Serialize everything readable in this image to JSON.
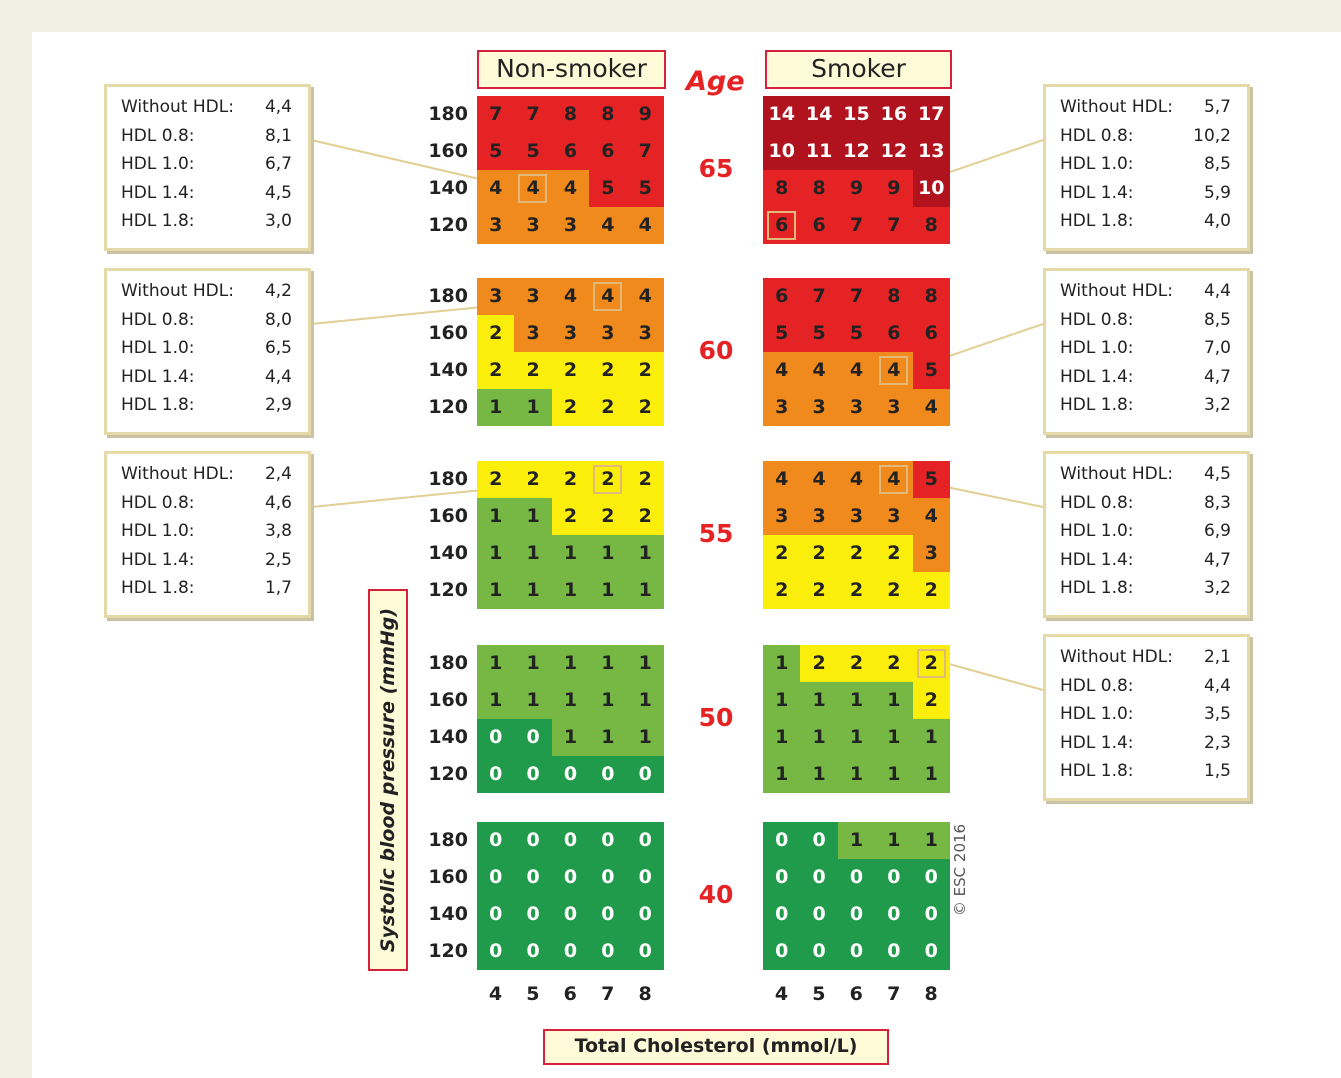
{
  "chart_data": {
    "type": "heatmap",
    "headers": {
      "non_smoker": "Non-smoker",
      "smoker": "Smoker",
      "age": "Age"
    },
    "ages": [
      "65",
      "60",
      "55",
      "50",
      "40"
    ],
    "sbp_labels": [
      "180",
      "160",
      "140",
      "120"
    ],
    "chol_labels": [
      "4",
      "5",
      "6",
      "7",
      "8"
    ],
    "ylabel": "Systolic blood pressure (mmHg)",
    "xlabel": "Total Cholesterol (mmol/L)",
    "copyright": "© ESC 2016",
    "colors": {
      "dark_red": "#b0131e",
      "red": "#e62324",
      "orange": "#f08a1d",
      "yellow": "#fcee0b",
      "light_green": "#76b843",
      "green": "#1f9b4b"
    },
    "non_smoker": [
      [
        [
          7,
          7,
          8,
          8,
          9
        ],
        [
          5,
          5,
          6,
          6,
          7
        ],
        [
          4,
          4,
          4,
          5,
          5
        ],
        [
          3,
          3,
          3,
          4,
          4
        ]
      ],
      [
        [
          3,
          3,
          4,
          4,
          4
        ],
        [
          2,
          3,
          3,
          3,
          3
        ],
        [
          2,
          2,
          2,
          2,
          2
        ],
        [
          1,
          1,
          2,
          2,
          2
        ]
      ],
      [
        [
          2,
          2,
          2,
          2,
          2
        ],
        [
          1,
          1,
          2,
          2,
          2
        ],
        [
          1,
          1,
          1,
          1,
          1
        ],
        [
          1,
          1,
          1,
          1,
          1
        ]
      ],
      [
        [
          1,
          1,
          1,
          1,
          1
        ],
        [
          1,
          1,
          1,
          1,
          1
        ],
        [
          0,
          0,
          1,
          1,
          1
        ],
        [
          0,
          0,
          0,
          0,
          0
        ]
      ],
      [
        [
          0,
          0,
          0,
          0,
          0
        ],
        [
          0,
          0,
          0,
          0,
          0
        ],
        [
          0,
          0,
          0,
          0,
          0
        ],
        [
          0,
          0,
          0,
          0,
          0
        ]
      ]
    ],
    "smoker": [
      [
        [
          14,
          14,
          15,
          16,
          17
        ],
        [
          10,
          11,
          12,
          12,
          13
        ],
        [
          8,
          8,
          9,
          9,
          10
        ],
        [
          6,
          6,
          7,
          7,
          8
        ]
      ],
      [
        [
          6,
          7,
          7,
          8,
          8
        ],
        [
          5,
          5,
          5,
          6,
          6
        ],
        [
          4,
          4,
          4,
          4,
          5
        ],
        [
          3,
          3,
          3,
          3,
          4
        ]
      ],
      [
        [
          4,
          4,
          4,
          4,
          5
        ],
        [
          3,
          3,
          3,
          3,
          4
        ],
        [
          2,
          2,
          2,
          2,
          3
        ],
        [
          2,
          2,
          2,
          2,
          2
        ]
      ],
      [
        [
          1,
          2,
          2,
          2,
          2
        ],
        [
          1,
          1,
          1,
          1,
          2
        ],
        [
          1,
          1,
          1,
          1,
          1
        ],
        [
          1,
          1,
          1,
          1,
          1
        ]
      ],
      [
        [
          0,
          0,
          1,
          1,
          1
        ],
        [
          0,
          0,
          0,
          0,
          0
        ],
        [
          0,
          0,
          0,
          0,
          0
        ],
        [
          0,
          0,
          0,
          0,
          0
        ]
      ]
    ],
    "callouts": [
      {
        "group": "non_smoker",
        "age_index": 0,
        "row": 2,
        "col": 1,
        "rows": [
          [
            "Without HDL:",
            "4,4"
          ],
          [
            "HDL 0.8:",
            "8,1"
          ],
          [
            "HDL 1.0:",
            "6,7"
          ],
          [
            "HDL 1.4:",
            "4,5"
          ],
          [
            "HDL 1.8:",
            "3,0"
          ]
        ]
      },
      {
        "group": "non_smoker",
        "age_index": 1,
        "row": 0,
        "col": 3,
        "rows": [
          [
            "Without HDL:",
            "4,2"
          ],
          [
            "HDL 0.8:",
            "8,0"
          ],
          [
            "HDL 1.0:",
            "6,5"
          ],
          [
            "HDL 1.4:",
            "4,4"
          ],
          [
            "HDL 1.8:",
            "2,9"
          ]
        ]
      },
      {
        "group": "non_smoker",
        "age_index": 2,
        "row": 0,
        "col": 3,
        "rows": [
          [
            "Without HDL:",
            "2,4"
          ],
          [
            "HDL 0.8:",
            "4,6"
          ],
          [
            "HDL 1.0:",
            "3,8"
          ],
          [
            "HDL 1.4:",
            "2,5"
          ],
          [
            "HDL 1.8:",
            "1,7"
          ]
        ]
      },
      {
        "group": "smoker",
        "age_index": 0,
        "row": 3,
        "col": 0,
        "rows": [
          [
            "Without HDL:",
            "5,7"
          ],
          [
            "HDL 0.8:",
            "10,2"
          ],
          [
            "HDL 1.0:",
            "8,5"
          ],
          [
            "HDL 1.4:",
            "5,9"
          ],
          [
            "HDL 1.8:",
            "4,0"
          ]
        ]
      },
      {
        "group": "smoker",
        "age_index": 1,
        "row": 2,
        "col": 3,
        "rows": [
          [
            "Without HDL:",
            "4,4"
          ],
          [
            "HDL 0.8:",
            "8,5"
          ],
          [
            "HDL 1.0:",
            "7,0"
          ],
          [
            "HDL 1.4:",
            "4,7"
          ],
          [
            "HDL 1.8:",
            "3,2"
          ]
        ]
      },
      {
        "group": "smoker",
        "age_index": 2,
        "row": 0,
        "col": 3,
        "rows": [
          [
            "Without HDL:",
            "4,5"
          ],
          [
            "HDL 0.8:",
            "8,3"
          ],
          [
            "HDL 1.0:",
            "6,9"
          ],
          [
            "HDL 1.4:",
            "4,7"
          ],
          [
            "HDL 1.8:",
            "3,2"
          ]
        ]
      },
      {
        "group": "smoker",
        "age_index": 3,
        "row": 0,
        "col": 4,
        "rows": [
          [
            "Without HDL:",
            "2,1"
          ],
          [
            "HDL 0.8:",
            "4,4"
          ],
          [
            "HDL 1.0:",
            "3,5"
          ],
          [
            "HDL 1.4:",
            "2,3"
          ],
          [
            "HDL 1.8:",
            "1,5"
          ]
        ]
      }
    ]
  }
}
